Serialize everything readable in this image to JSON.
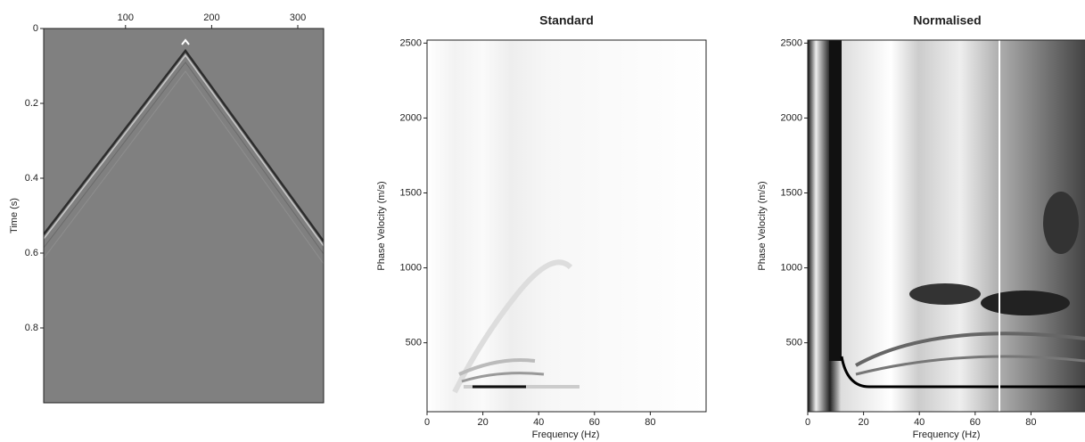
{
  "chart_data": [
    {
      "type": "image",
      "ylabel": "Time (s)",
      "xlim": [
        5,
        330
      ],
      "xticks": [
        100,
        200,
        300
      ],
      "ylim": [
        0,
        1
      ],
      "yticks": [
        0,
        0.2,
        0.4,
        0.6,
        0.8
      ],
      "y_inverted": true,
      "x_axis_top": true
    },
    {
      "type": "image",
      "title": "Standard",
      "xlabel": "Frequency (Hz)",
      "ylabel": "Phase Velocity (m/s)",
      "xlim": [
        0,
        100
      ],
      "xticks": [
        0,
        20,
        40,
        60,
        80
      ],
      "ylim": [
        40,
        2520
      ],
      "yticks": [
        500,
        1000,
        1500,
        2000,
        2500
      ]
    },
    {
      "type": "image",
      "title": "Normalised",
      "xlabel": "Frequency (Hz)",
      "ylabel": "Phase Velocity (m/s)",
      "xlim": [
        0,
        100
      ],
      "xticks": [
        0,
        20,
        40,
        60,
        80
      ],
      "ylim": [
        40,
        2520
      ],
      "yticks": [
        500,
        1000,
        1500,
        2000,
        2500
      ]
    }
  ]
}
